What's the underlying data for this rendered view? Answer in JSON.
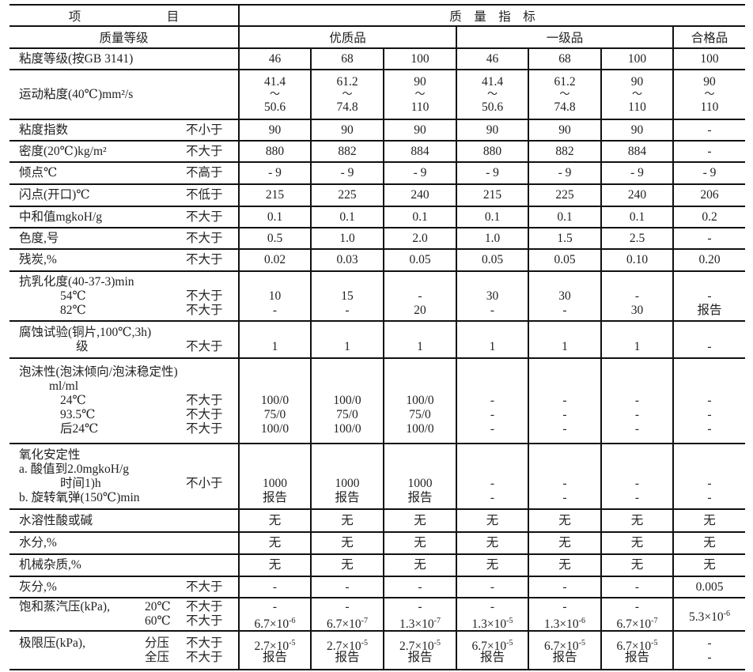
{
  "header": {
    "item": "项　　　　　　　目",
    "indicator": "质　量　指　标",
    "grade_label": "质量等级",
    "groups": [
      "优质品",
      "一级品",
      "合格品"
    ]
  },
  "rows": [
    {
      "main": [
        "粘度等级(按GB 3141)"
      ],
      "cond": [
        ""
      ],
      "values": [
        [
          "46"
        ],
        [
          "68"
        ],
        [
          "100"
        ],
        [
          "46"
        ],
        [
          "68"
        ],
        [
          "100"
        ],
        [
          "100"
        ]
      ]
    },
    {
      "main": [
        "运动粘度(40℃)mm²/s"
      ],
      "cond": [
        ""
      ],
      "values": [
        [
          "41.4",
          "～",
          "50.6"
        ],
        [
          "61.2",
          "～",
          "74.8"
        ],
        [
          "90",
          "～",
          "110"
        ],
        [
          "41.4",
          "～",
          "50.6"
        ],
        [
          "61.2",
          "～",
          "74.8"
        ],
        [
          "90",
          "～",
          "110"
        ],
        [
          "90",
          "～",
          "110"
        ]
      ]
    },
    {
      "main": [
        "粘度指数"
      ],
      "cond": [
        "不小于"
      ],
      "values": [
        [
          "90"
        ],
        [
          "90"
        ],
        [
          "90"
        ],
        [
          "90"
        ],
        [
          "90"
        ],
        [
          "90"
        ],
        [
          "-"
        ]
      ]
    },
    {
      "main": [
        "密度(20℃)kg/m²"
      ],
      "cond": [
        "不大于"
      ],
      "values": [
        [
          "880"
        ],
        [
          "882"
        ],
        [
          "884"
        ],
        [
          "880"
        ],
        [
          "882"
        ],
        [
          "884"
        ],
        [
          "-"
        ]
      ]
    },
    {
      "main": [
        "倾点℃"
      ],
      "cond": [
        "不高于"
      ],
      "values": [
        [
          "- 9"
        ],
        [
          "- 9"
        ],
        [
          "- 9"
        ],
        [
          "- 9"
        ],
        [
          "- 9"
        ],
        [
          "- 9"
        ],
        [
          "- 9"
        ]
      ]
    },
    {
      "main": [
        "闪点(开口)℃"
      ],
      "cond": [
        "不低于"
      ],
      "values": [
        [
          "215"
        ],
        [
          "225"
        ],
        [
          "240"
        ],
        [
          "215"
        ],
        [
          "225"
        ],
        [
          "240"
        ],
        [
          "206"
        ]
      ]
    },
    {
      "main": [
        "中和值mgkoH/g"
      ],
      "cond": [
        "不大于"
      ],
      "values": [
        [
          "0.1"
        ],
        [
          "0.1"
        ],
        [
          "0.1"
        ],
        [
          "0.1"
        ],
        [
          "0.1"
        ],
        [
          "0.1"
        ],
        [
          "0.2"
        ]
      ]
    },
    {
      "main": [
        "色度,号"
      ],
      "cond": [
        "不大于"
      ],
      "values": [
        [
          "0.5"
        ],
        [
          "1.0"
        ],
        [
          "2.0"
        ],
        [
          "1.0"
        ],
        [
          "1.5"
        ],
        [
          "2.5"
        ],
        [
          "-"
        ]
      ]
    },
    {
      "main": [
        "残炭,%"
      ],
      "cond": [
        "不大于"
      ],
      "values": [
        [
          "0.02"
        ],
        [
          "0.03"
        ],
        [
          "0.05"
        ],
        [
          "0.05"
        ],
        [
          "0.05"
        ],
        [
          "0.10"
        ],
        [
          "0.20"
        ]
      ]
    },
    {
      "main": [
        "抗乳化度(40-37-3)min",
        "54℃",
        "82℃"
      ],
      "cond": [
        "",
        "不大于",
        "不大于"
      ],
      "values": [
        [
          "",
          "10",
          "-"
        ],
        [
          "",
          "15",
          "-"
        ],
        [
          "",
          "-",
          "20"
        ],
        [
          "",
          "30",
          "-"
        ],
        [
          "",
          "30",
          "-"
        ],
        [
          "",
          "-",
          "30"
        ],
        [
          "",
          "-",
          "报告"
        ]
      ]
    },
    {
      "main": [
        "腐蚀试验(铜片,100℃,3h)",
        "级"
      ],
      "cond": [
        "",
        "不大于"
      ],
      "values": [
        [
          "",
          "1"
        ],
        [
          "",
          "1"
        ],
        [
          "",
          "1"
        ],
        [
          "",
          "1"
        ],
        [
          "",
          "1"
        ],
        [
          "",
          "1"
        ],
        [
          "",
          "-"
        ]
      ]
    },
    {
      "main": [
        "泡沫性(泡沫倾向/泡沫稳定性)",
        "ml/ml",
        "24℃",
        "93.5℃",
        "后24℃"
      ],
      "cond": [
        "",
        "",
        "不大于",
        "不大于",
        "不大于"
      ],
      "values": [
        [
          "",
          "",
          "100/0",
          "75/0",
          "100/0"
        ],
        [
          "",
          "",
          "100/0",
          "75/0",
          "100/0"
        ],
        [
          "",
          "",
          "100/0",
          "75/0",
          "100/0"
        ],
        [
          "",
          "",
          "-",
          "-",
          "-"
        ],
        [
          "",
          "",
          "-",
          "-",
          "-"
        ],
        [
          "",
          "",
          "-",
          "-",
          "-"
        ],
        [
          "",
          "",
          "-",
          "-",
          "-"
        ]
      ]
    },
    {
      "main": [
        "氧化安定性",
        "a. 酸值到2.0mgkoH/g",
        "时间1)h",
        "b. 旋转氧弹(150℃)min"
      ],
      "cond": [
        "",
        "",
        "不小于",
        ""
      ],
      "values": [
        [
          "",
          "",
          "1000",
          "报告"
        ],
        [
          "",
          "",
          "1000",
          "报告"
        ],
        [
          "",
          "",
          "1000",
          "报告"
        ],
        [
          "",
          "",
          "-",
          "-"
        ],
        [
          "",
          "",
          "-",
          "-"
        ],
        [
          "",
          "",
          "-",
          "-"
        ],
        [
          "",
          "",
          "-",
          "-"
        ]
      ]
    },
    {
      "main": [
        "水溶性酸或碱"
      ],
      "cond": [
        ""
      ],
      "values": [
        [
          "无"
        ],
        [
          "无"
        ],
        [
          "无"
        ],
        [
          "无"
        ],
        [
          "无"
        ],
        [
          "无"
        ],
        [
          "无"
        ]
      ]
    },
    {
      "main": [
        "水分,%"
      ],
      "cond": [
        ""
      ],
      "values": [
        [
          "无"
        ],
        [
          "无"
        ],
        [
          "无"
        ],
        [
          "无"
        ],
        [
          "无"
        ],
        [
          "无"
        ],
        [
          "无"
        ]
      ]
    },
    {
      "main": [
        "机械杂质,%"
      ],
      "cond": [
        ""
      ],
      "values": [
        [
          "无"
        ],
        [
          "无"
        ],
        [
          "无"
        ],
        [
          "无"
        ],
        [
          "无"
        ],
        [
          "无"
        ],
        [
          "无"
        ]
      ]
    },
    {
      "main": [
        "灰分,%"
      ],
      "cond": [
        "不大于"
      ],
      "values": [
        [
          "-"
        ],
        [
          "-"
        ],
        [
          "-"
        ],
        [
          "-"
        ],
        [
          "-"
        ],
        [
          "-"
        ],
        [
          "0.005"
        ]
      ]
    },
    {
      "main": [
        "饱和蒸汽压(kPa),",
        ""
      ],
      "sub": [
        "20℃",
        "60℃"
      ],
      "cond": [
        "不大于",
        "不大于"
      ],
      "values": [
        [
          "-",
          {
            "b": "6.7×10",
            "e": "-6"
          }
        ],
        [
          "-",
          {
            "b": "6.7×10",
            "e": "-7"
          }
        ],
        [
          "-",
          {
            "b": "1.3×10",
            "e": "-7"
          }
        ],
        [
          "-",
          {
            "b": "1.3×10",
            "e": "-5"
          }
        ],
        [
          "-",
          {
            "b": "1.3×10",
            "e": "-6"
          }
        ],
        [
          "-",
          {
            "b": "6.7×10",
            "e": "-7"
          }
        ],
        [
          {
            "b": "5.3×10",
            "e": "-6"
          }
        ]
      ]
    },
    {
      "main": [
        "极限压(kPa),",
        ""
      ],
      "sub": [
        "分压",
        "全压"
      ],
      "cond": [
        "不大于",
        "不大于"
      ],
      "values": [
        [
          {
            "b": "2.7×10",
            "e": "-5"
          },
          "报告"
        ],
        [
          {
            "b": "2.7×10",
            "e": "-5"
          },
          "报告"
        ],
        [
          {
            "b": "2.7×10",
            "e": "-5"
          },
          "报告"
        ],
        [
          {
            "b": "6.7×10",
            "e": "-5"
          },
          "报告"
        ],
        [
          {
            "b": "6.7×10",
            "e": "-5"
          },
          "报告"
        ],
        [
          {
            "b": "6.7×10",
            "e": "-5"
          },
          "报告"
        ],
        [
          "-",
          "-"
        ]
      ]
    }
  ]
}
